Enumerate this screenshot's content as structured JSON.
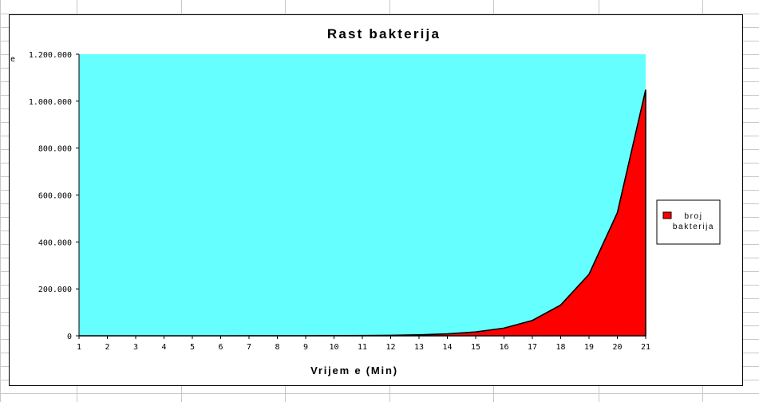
{
  "chart_data": {
    "type": "area",
    "title": "Rast bakterija",
    "xlabel": "Vrijem e (Min)",
    "ylabel": "e",
    "categories": [
      "1",
      "2",
      "3",
      "4",
      "5",
      "6",
      "7",
      "8",
      "9",
      "10",
      "11",
      "12",
      "13",
      "14",
      "15",
      "16",
      "17",
      "18",
      "19",
      "20",
      "21"
    ],
    "y_tick_labels": [
      "0",
      "200.000",
      "400.000",
      "600.000",
      "800.000",
      "1.000.000",
      "1.200.000"
    ],
    "y_ticks": [
      0,
      200000,
      400000,
      600000,
      800000,
      1000000,
      1200000
    ],
    "ylim": [
      0,
      1200000
    ],
    "series": [
      {
        "name": "broj bakterija",
        "color": "#ff0000",
        "values": [
          1,
          2,
          4,
          8,
          16,
          32,
          64,
          128,
          256,
          512,
          1024,
          2048,
          4096,
          8192,
          16384,
          32768,
          65536,
          131072,
          262144,
          524288,
          1048576
        ]
      }
    ],
    "legend": {
      "position": "right",
      "label_lines": [
        "broj",
        "bakterija"
      ]
    },
    "plot_background": "#66ffff",
    "grid": false
  }
}
